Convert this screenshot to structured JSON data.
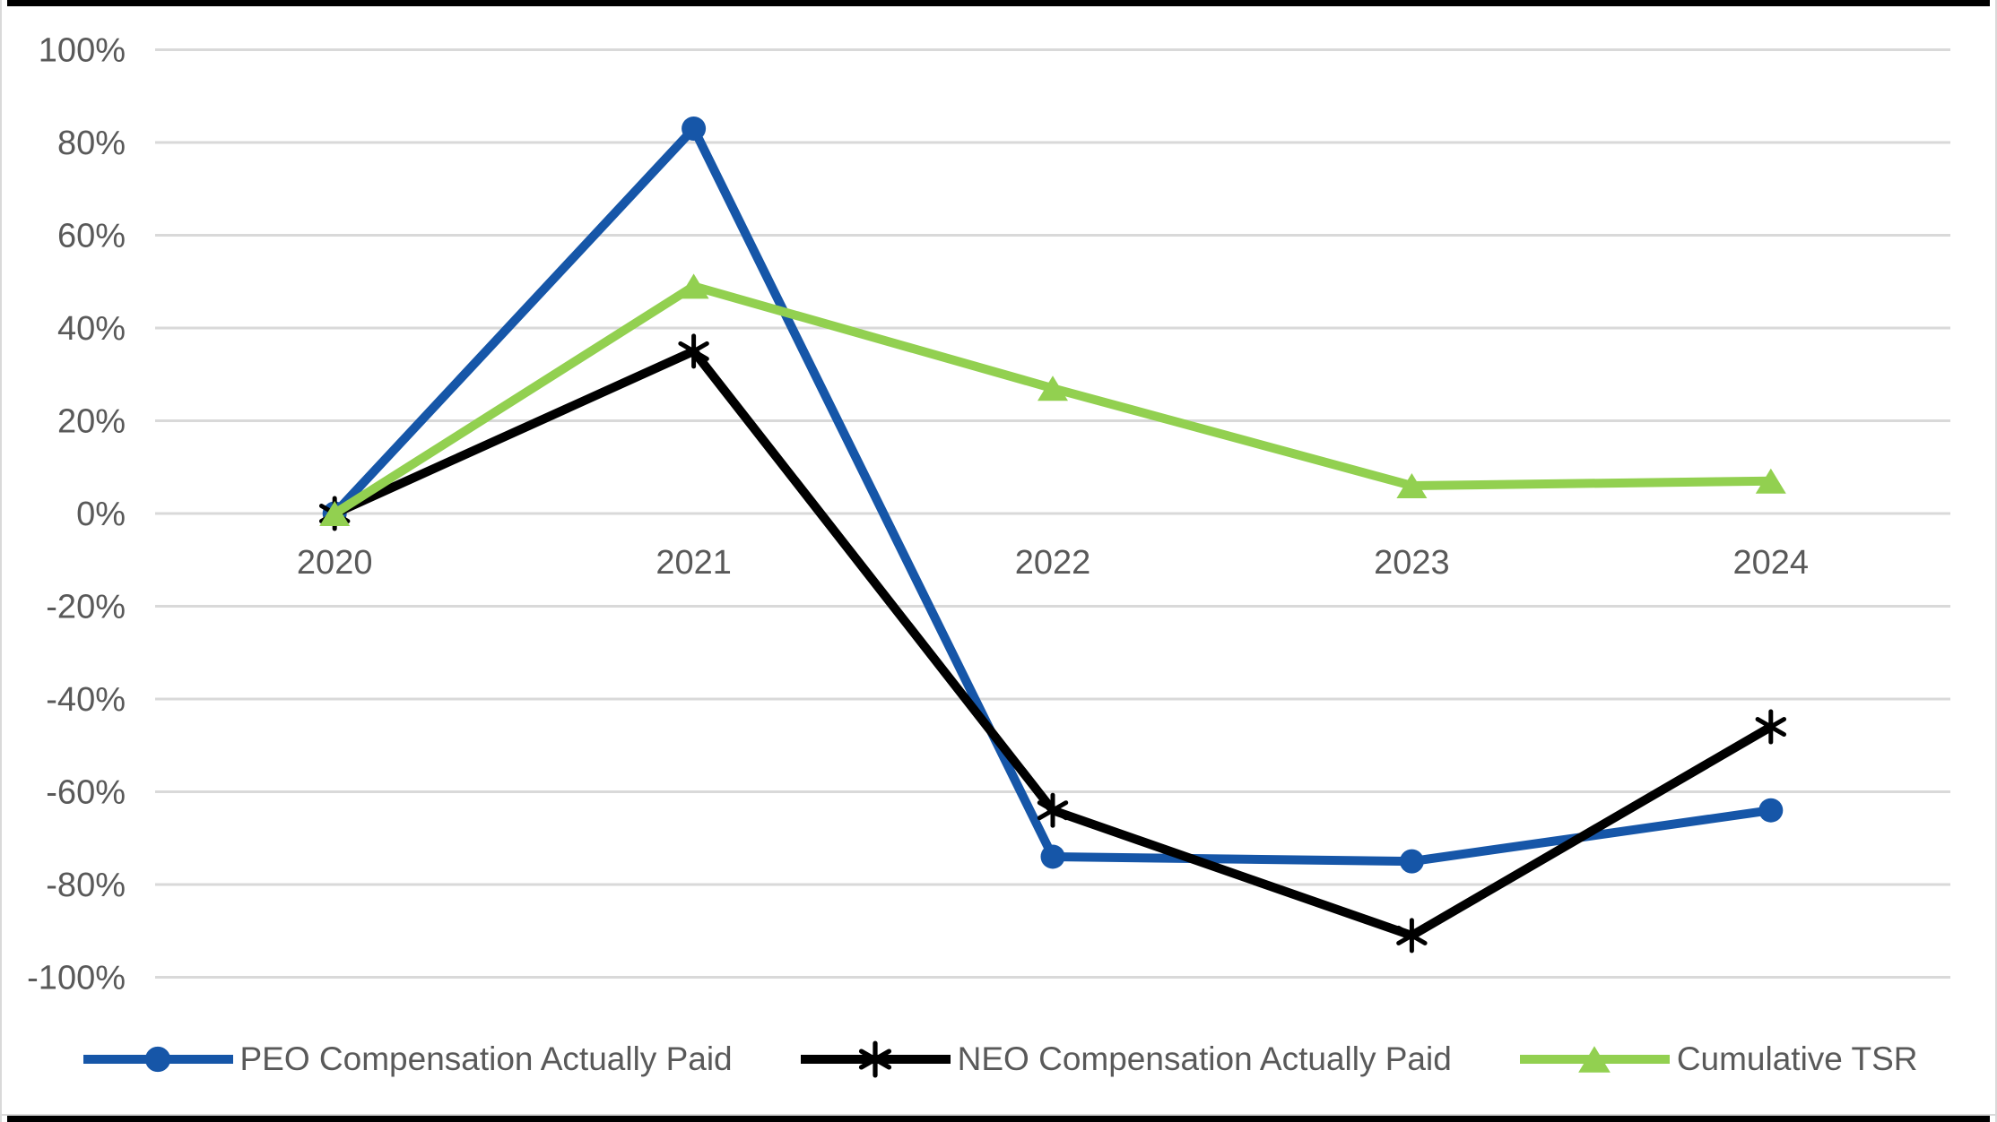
{
  "chart_data": {
    "type": "line",
    "title": "",
    "xlabel": "",
    "ylabel": "",
    "categories": [
      "2020",
      "2021",
      "2022",
      "2023",
      "2024"
    ],
    "series": [
      {
        "name": "PEO Compensation Actually Paid",
        "color": "#1656A8",
        "marker": "circle",
        "values": [
          0,
          83,
          -74,
          -75,
          -64
        ]
      },
      {
        "name": "NEO Compensation Actually Paid",
        "color": "#000000",
        "marker": "asterisk",
        "values": [
          0,
          35,
          -64,
          -91,
          -46
        ]
      },
      {
        "name": "Cumulative TSR",
        "color": "#92D050",
        "marker": "triangle",
        "values": [
          0,
          49,
          27,
          6,
          7
        ]
      }
    ],
    "yticks": [
      100,
      80,
      60,
      40,
      20,
      0,
      -20,
      -40,
      -60,
      -80,
      -100
    ],
    "ytick_suffix": "%",
    "ylim": [
      -100,
      100
    ],
    "grid": true,
    "legend_position": "bottom"
  },
  "colors": {
    "gridline": "#D9D9D9",
    "axis_text": "#595959",
    "background": "#FFFFFF",
    "frame_border": "#D9D9D9",
    "frame_bar": "#000000"
  }
}
